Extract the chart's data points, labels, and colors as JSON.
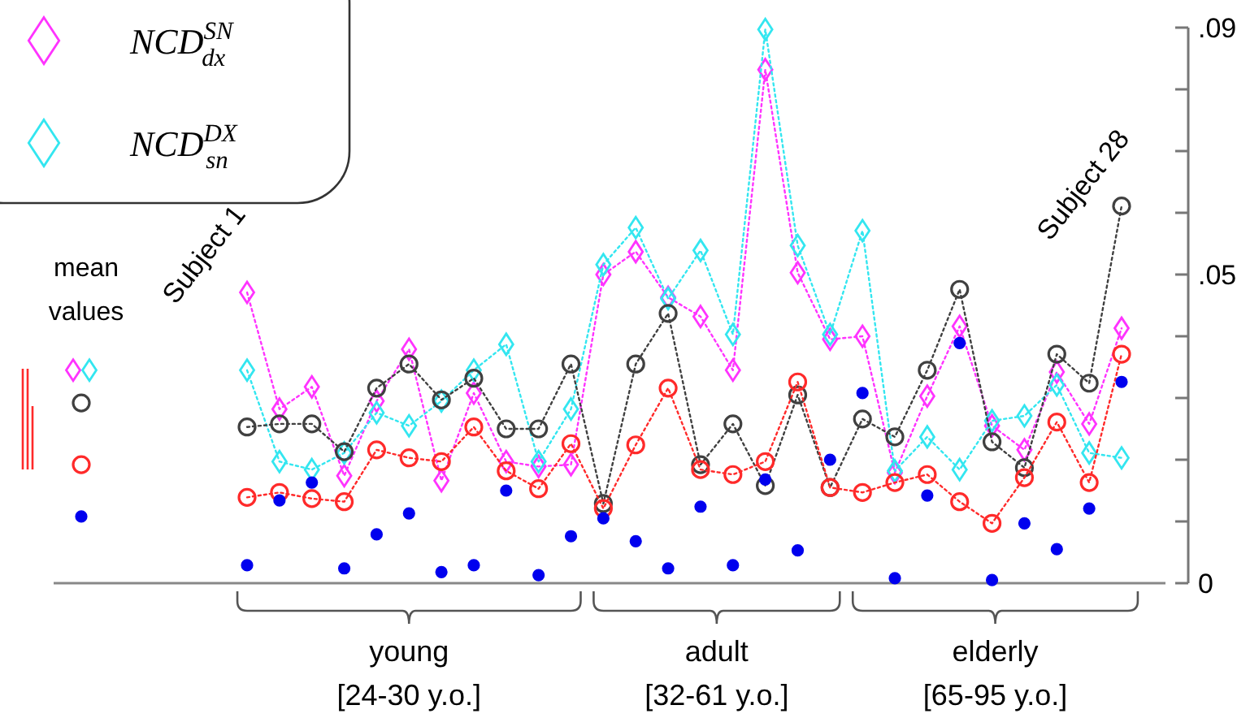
{
  "chart_data": [
    {
      "type": "scatter",
      "categories": [
        "mean values"
      ],
      "ylim": [
        0,
        0.09
      ],
      "tick_labels": "x",
      "series": [
        {
          "type": "line",
          "marker": "diamond",
          "color": "#ff33ff",
          "values": [
            0.0345
          ]
        },
        {
          "type": "line",
          "marker": "diamond",
          "color": "#33e6f0",
          "values": [
            0.0345
          ]
        },
        {
          "type": "line",
          "marker": "circle",
          "color": "#404040",
          "values": [
            0.0292
          ]
        },
        {
          "type": "line",
          "marker": "circle",
          "color": "#ff2a2a",
          "values": [
            0.0192
          ]
        },
        {
          "marker": "circle",
          "color": "#0000ee",
          "values": [
            0.0108
          ]
        }
      ]
    },
    {
      "type": "line",
      "categories": [
        null,
        null,
        null,
        null,
        null,
        null,
        null,
        null,
        null,
        null,
        null,
        null,
        null,
        null,
        null,
        null,
        null,
        null,
        null,
        null,
        null,
        null,
        null,
        null,
        null,
        null,
        null,
        null
      ],
      "ylim": [
        0,
        0.09
      ],
      "yticks": [
        0,
        {
          "value": 0.01,
          "label": null
        },
        {
          "value": 0.02,
          "label": null
        },
        {
          "value": 0.03,
          "label": null
        },
        {
          "value": 0.04,
          "label": null
        },
        {
          "value": 0.05,
          "label": ".05"
        },
        {
          "value": 0.06,
          "label": null
        },
        {
          "value": 0.07,
          "label": null
        },
        {
          "value": 0.08,
          "label": null
        },
        {
          "value": 0.09,
          "label": ".09"
        }
      ],
      "tick_labels": "y",
      "legend": "top left",
      "line_style": "dotted",
      "series": [
        {
          "name": "NCD$^{SN}$$_{dx}$",
          "marker": "diamond",
          "color": "#ff33ff",
          "values": [
            0.0471,
            0.0282,
            0.0318,
            0.0174,
            0.0295,
            0.0379,
            0.0166,
            0.0308,
            0.0197,
            0.0189,
            0.0192,
            0.05,
            0.0537,
            0.0463,
            0.0432,
            0.0345,
            0.0832,
            0.0503,
            0.0395,
            0.04,
            0.0179,
            0.0303,
            0.0416,
            0.0255,
            0.0216,
            0.0342,
            0.0258,
            0.0413
          ]
        },
        {
          "name": "NCD$^{DX}$$_{sn}$",
          "marker": "diamond",
          "color": "#33e6f0",
          "values": [
            0.0345,
            0.0197,
            0.0184,
            0.0211,
            0.0276,
            0.0255,
            0.0295,
            0.0345,
            0.0387,
            0.0197,
            0.0282,
            0.0516,
            0.0576,
            0.0461,
            0.0539,
            0.0403,
            0.0897,
            0.0547,
            0.0403,
            0.0571,
            0.0182,
            0.0237,
            0.0184,
            0.0263,
            0.0271,
            0.0321,
            0.0211,
            0.0203
          ]
        },
        {
          "marker": "circle",
          "color": "#404040",
          "values": [
            0.0253,
            0.0258,
            0.0258,
            0.0213,
            0.0316,
            0.0355,
            0.0297,
            0.0332,
            0.025,
            0.025,
            0.0355,
            0.0129,
            0.0355,
            0.0437,
            0.0192,
            0.0258,
            0.0158,
            0.0305,
            0.0155,
            0.0266,
            0.0237,
            0.0345,
            0.0476,
            0.0229,
            0.0187,
            0.0371,
            0.0324,
            0.0611
          ]
        },
        {
          "marker": "circle",
          "color": "#ff2a2a",
          "values": [
            0.0139,
            0.0147,
            0.0137,
            0.0132,
            0.0216,
            0.0203,
            0.0197,
            0.0253,
            0.0182,
            0.0153,
            0.0226,
            0.0121,
            0.0224,
            0.0316,
            0.0184,
            0.0176,
            0.0197,
            0.0326,
            0.0155,
            0.0147,
            0.0163,
            0.0176,
            0.0132,
            0.0097,
            0.0171,
            0.0261,
            0.0163,
            0.0371
          ]
        },
        {
          "type": "scatter",
          "marker": "circle",
          "color": "#0000ee",
          "values": [
            0.0029,
            0.0134,
            0.0163,
            0.0024,
            0.0079,
            0.0113,
            0.0018,
            0.0029,
            0.015,
            0.0013,
            0.0076,
            0.0105,
            0.0068,
            0.0024,
            0.0124,
            0.0029,
            0.0168,
            0.0053,
            0.02,
            0.0308,
            0.0008,
            0.0142,
            0.0389,
            0.0005,
            0.0097,
            0.0055,
            0.0121,
            0.0326
          ]
        }
      ],
      "annotations": [
        "Subject 1",
        "Subject 28",
        "young [24-30 y.o.]",
        "adult [32-61 y.o.]",
        "elderly [65-95 y.o.]"
      ]
    }
  ]
}
